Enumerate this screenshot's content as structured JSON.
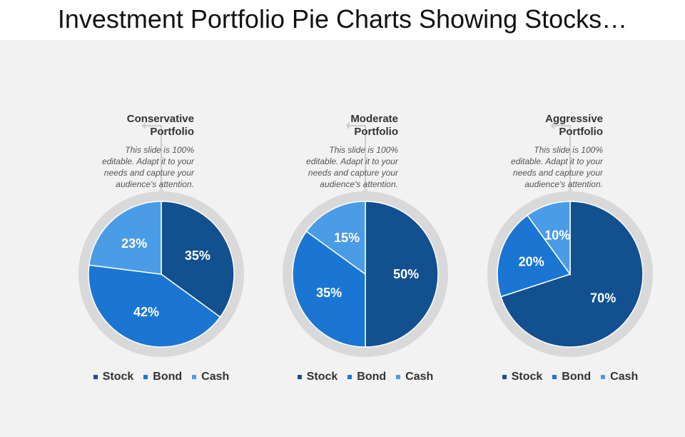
{
  "title": "Investment Portfolio Pie Charts Showing Stocks…",
  "colors": {
    "stock": "#12508f",
    "bond": "#1a76d2",
    "cash": "#4b9ce6",
    "ring": "#d9d9d9",
    "connector": "#cccccc"
  },
  "chart_data": [
    {
      "type": "pie",
      "title": "Conservative Portfolio",
      "title_lines": [
        "Conservative",
        "Portfolio"
      ],
      "description_lines": [
        "This slide is 100%",
        "editable. Adapt it to your",
        "needs and capture your",
        "audience's attention."
      ],
      "categories": [
        "Stock",
        "Bond",
        "Cash"
      ],
      "values": [
        35,
        42,
        23
      ],
      "labels": [
        "35%",
        "42%",
        "23%"
      ],
      "legend": [
        "Stock",
        "Bond",
        "Cash"
      ]
    },
    {
      "type": "pie",
      "title": "Moderate Portfolio",
      "title_lines": [
        "Moderate",
        "Portfolio"
      ],
      "description_lines": [
        "This slide is 100%",
        "editable. Adapt it to your",
        "needs and capture your",
        "audience's attention."
      ],
      "categories": [
        "Stock",
        "Bond",
        "Cash"
      ],
      "values": [
        50,
        35,
        15
      ],
      "labels": [
        "50%",
        "35%",
        "15%"
      ],
      "legend": [
        "Stock",
        "Bond",
        "Cash"
      ]
    },
    {
      "type": "pie",
      "title": "Aggressive Portfolio",
      "title_lines": [
        "Aggressive",
        "Portfolio"
      ],
      "description_lines": [
        "This slide is 100%",
        "editable. Adapt it to your",
        "needs and capture your",
        "audience's attention."
      ],
      "categories": [
        "Stock",
        "Bond",
        "Cash"
      ],
      "values": [
        70,
        20,
        10
      ],
      "labels": [
        "70%",
        "20%",
        "10%"
      ],
      "legend": [
        "Stock",
        "Bond",
        "Cash"
      ]
    }
  ]
}
